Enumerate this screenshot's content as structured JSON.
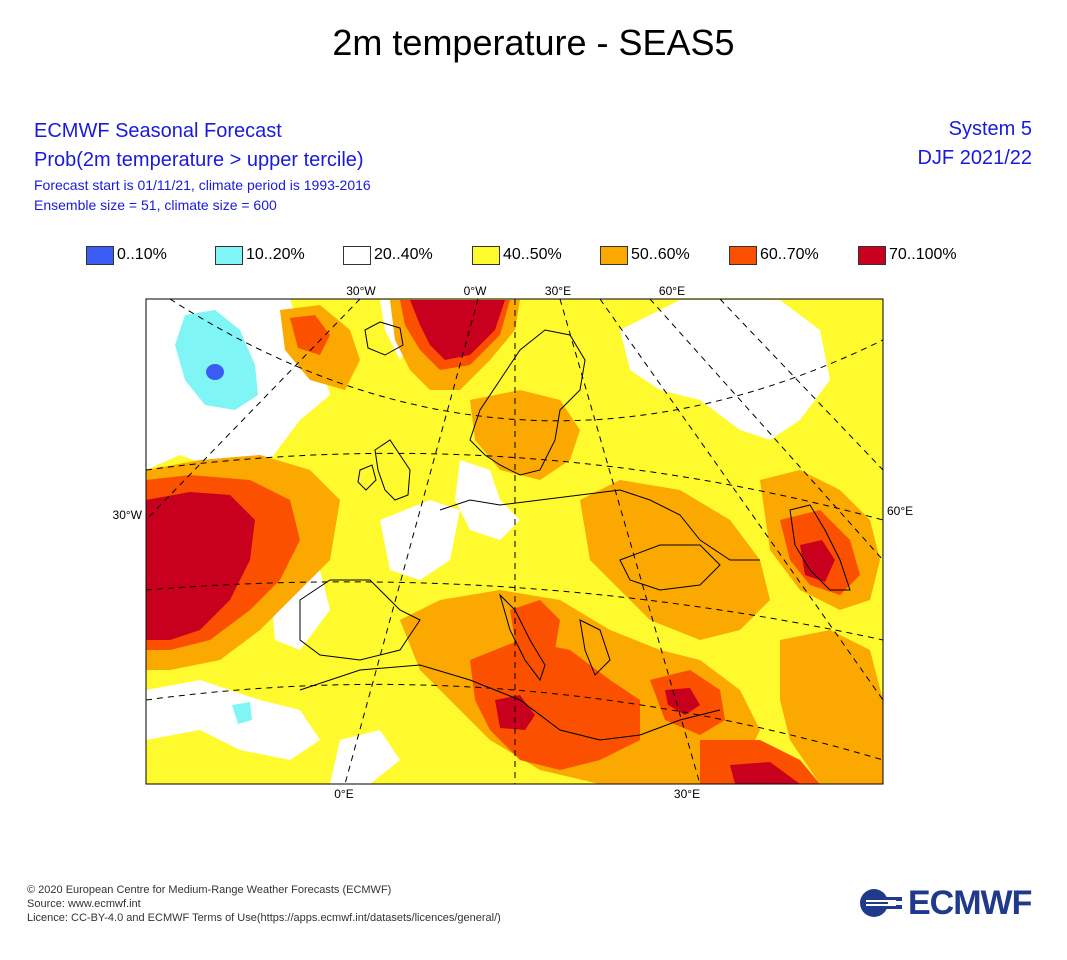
{
  "title": "2m temperature - SEAS5",
  "header": {
    "org": "ECMWF Seasonal Forecast",
    "product": "Prob(2m temperature > upper tercile)",
    "start": "Forecast start is 01/11/21, climate period is 1993-2016",
    "ensemble": "Ensemble size = 51, climate size = 600",
    "system": "System 5",
    "season": "DJF 2021/22"
  },
  "legend": [
    {
      "label": "0..10%",
      "color": "#3a5cf5"
    },
    {
      "label": "10..20%",
      "color": "#7ff5f5"
    },
    {
      "label": "20..40%",
      "color": "#ffffff"
    },
    {
      "label": "40..50%",
      "color": "#fffa2e"
    },
    {
      "label": "50..60%",
      "color": "#fba800"
    },
    {
      "label": "60..70%",
      "color": "#fb5000"
    },
    {
      "label": "70..100%",
      "color": "#c8001e"
    }
  ],
  "map": {
    "top_labels": [
      "30°W",
      "0°W",
      "30°E",
      "60°E"
    ],
    "bottom_labels": [
      "0°E",
      "30°E"
    ],
    "left_label": "30°W",
    "right_label": "60°E"
  },
  "footer": {
    "copyright": "© 2020 European Centre for Medium-Range Weather Forecasts (ECMWF)",
    "source": "Source: www.ecmwf.int",
    "licence": "Licence: CC-BY-4.0 and ECMWF Terms of Use(https://apps.ecmwf.int/datasets/licences/general/)"
  },
  "logo": {
    "text": "ECMWF"
  }
}
